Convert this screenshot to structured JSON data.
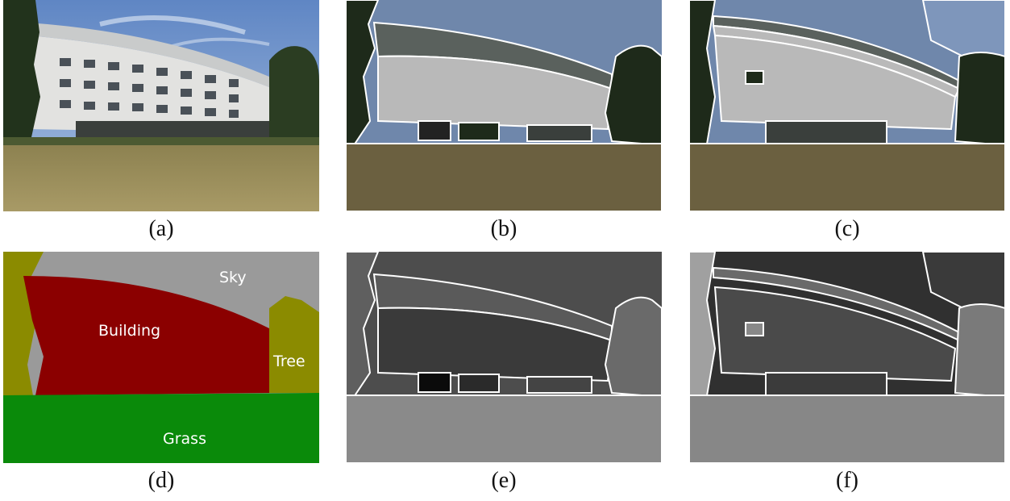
{
  "figure": {
    "panels": [
      {
        "id": "a",
        "caption": "(a)"
      },
      {
        "id": "b",
        "caption": "(b)"
      },
      {
        "id": "c",
        "caption": "(c)"
      },
      {
        "id": "d",
        "caption": "(d)"
      },
      {
        "id": "e",
        "caption": "(e)"
      },
      {
        "id": "f",
        "caption": "(f)"
      }
    ],
    "labels": {
      "sky": "Sky",
      "building": "Building",
      "tree": "Tree",
      "grass": "Grass"
    },
    "colors": {
      "sky_photo": "#7d9cc9",
      "sky_seg": "#6f87ab",
      "roof_seg": "#5a615d",
      "wall_seg": "#b9b9b9",
      "tree_seg": "#1e2a1a",
      "grass_seg": "#6b6040",
      "label_sky": "#9a9a9a",
      "label_building": "#8b0000",
      "label_tree": "#8b8b00",
      "label_grass": "#0a8a0a"
    }
  }
}
